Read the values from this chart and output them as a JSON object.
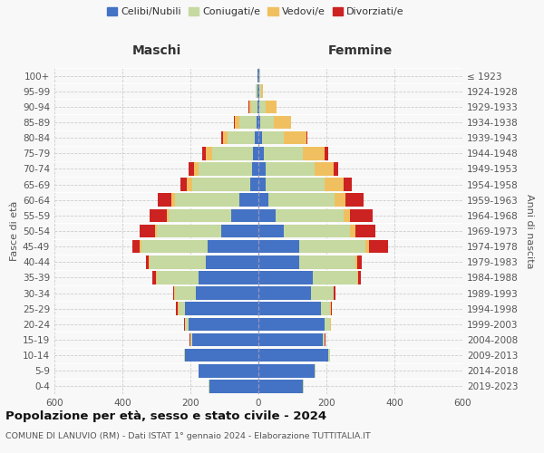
{
  "age_groups": [
    "0-4",
    "5-9",
    "10-14",
    "15-19",
    "20-24",
    "25-29",
    "30-34",
    "35-39",
    "40-44",
    "45-49",
    "50-54",
    "55-59",
    "60-64",
    "65-69",
    "70-74",
    "75-79",
    "80-84",
    "85-89",
    "90-94",
    "95-99",
    "100+"
  ],
  "birth_years": [
    "2019-2023",
    "2014-2018",
    "2009-2013",
    "2004-2008",
    "1999-2003",
    "1994-1998",
    "1989-1993",
    "1984-1988",
    "1979-1983",
    "1974-1978",
    "1969-1973",
    "1964-1968",
    "1959-1963",
    "1954-1958",
    "1949-1953",
    "1944-1948",
    "1939-1943",
    "1934-1938",
    "1929-1933",
    "1924-1928",
    "≤ 1923"
  ],
  "maschi": {
    "celibi": [
      145,
      175,
      215,
      195,
      205,
      215,
      185,
      175,
      155,
      150,
      110,
      80,
      55,
      25,
      20,
      15,
      10,
      5,
      2,
      2,
      2
    ],
    "coniugati": [
      2,
      2,
      5,
      5,
      10,
      20,
      60,
      125,
      165,
      195,
      190,
      185,
      190,
      170,
      155,
      120,
      80,
      50,
      20,
      5,
      2
    ],
    "vedovi": [
      0,
      0,
      0,
      0,
      2,
      2,
      2,
      2,
      2,
      5,
      5,
      5,
      10,
      15,
      15,
      20,
      15,
      15,
      5,
      2,
      0
    ],
    "divorziati": [
      0,
      0,
      0,
      2,
      2,
      5,
      5,
      10,
      10,
      20,
      45,
      50,
      40,
      20,
      15,
      10,
      5,
      2,
      2,
      0,
      0
    ]
  },
  "femmine": {
    "nubili": [
      130,
      165,
      205,
      190,
      195,
      185,
      155,
      160,
      120,
      120,
      75,
      50,
      30,
      20,
      20,
      15,
      10,
      5,
      2,
      2,
      2
    ],
    "coniugate": [
      2,
      2,
      5,
      5,
      15,
      25,
      65,
      130,
      165,
      195,
      195,
      200,
      195,
      175,
      145,
      115,
      65,
      40,
      20,
      5,
      2
    ],
    "vedove": [
      0,
      0,
      0,
      0,
      2,
      2,
      2,
      2,
      5,
      10,
      15,
      20,
      30,
      55,
      55,
      65,
      65,
      50,
      30,
      5,
      2
    ],
    "divorziate": [
      0,
      0,
      0,
      2,
      2,
      5,
      5,
      10,
      15,
      55,
      60,
      65,
      55,
      25,
      15,
      10,
      5,
      2,
      2,
      0,
      0
    ]
  },
  "colors": {
    "celibi": "#4472c4",
    "coniugati": "#c5d9a0",
    "vedovi": "#f0c060",
    "divorziati": "#cc2222"
  },
  "title": "Popolazione per età, sesso e stato civile - 2024",
  "subtitle": "COMUNE DI LANUVIO (RM) - Dati ISTAT 1° gennaio 2024 - Elaborazione TUTTITALIA.IT",
  "xlabel_left": "Maschi",
  "xlabel_right": "Femmine",
  "ylabel_left": "Fasce di età",
  "ylabel_right": "Anni di nascita",
  "xlim": 600,
  "background_color": "#f8f8f8",
  "grid_color": "#cccccc"
}
